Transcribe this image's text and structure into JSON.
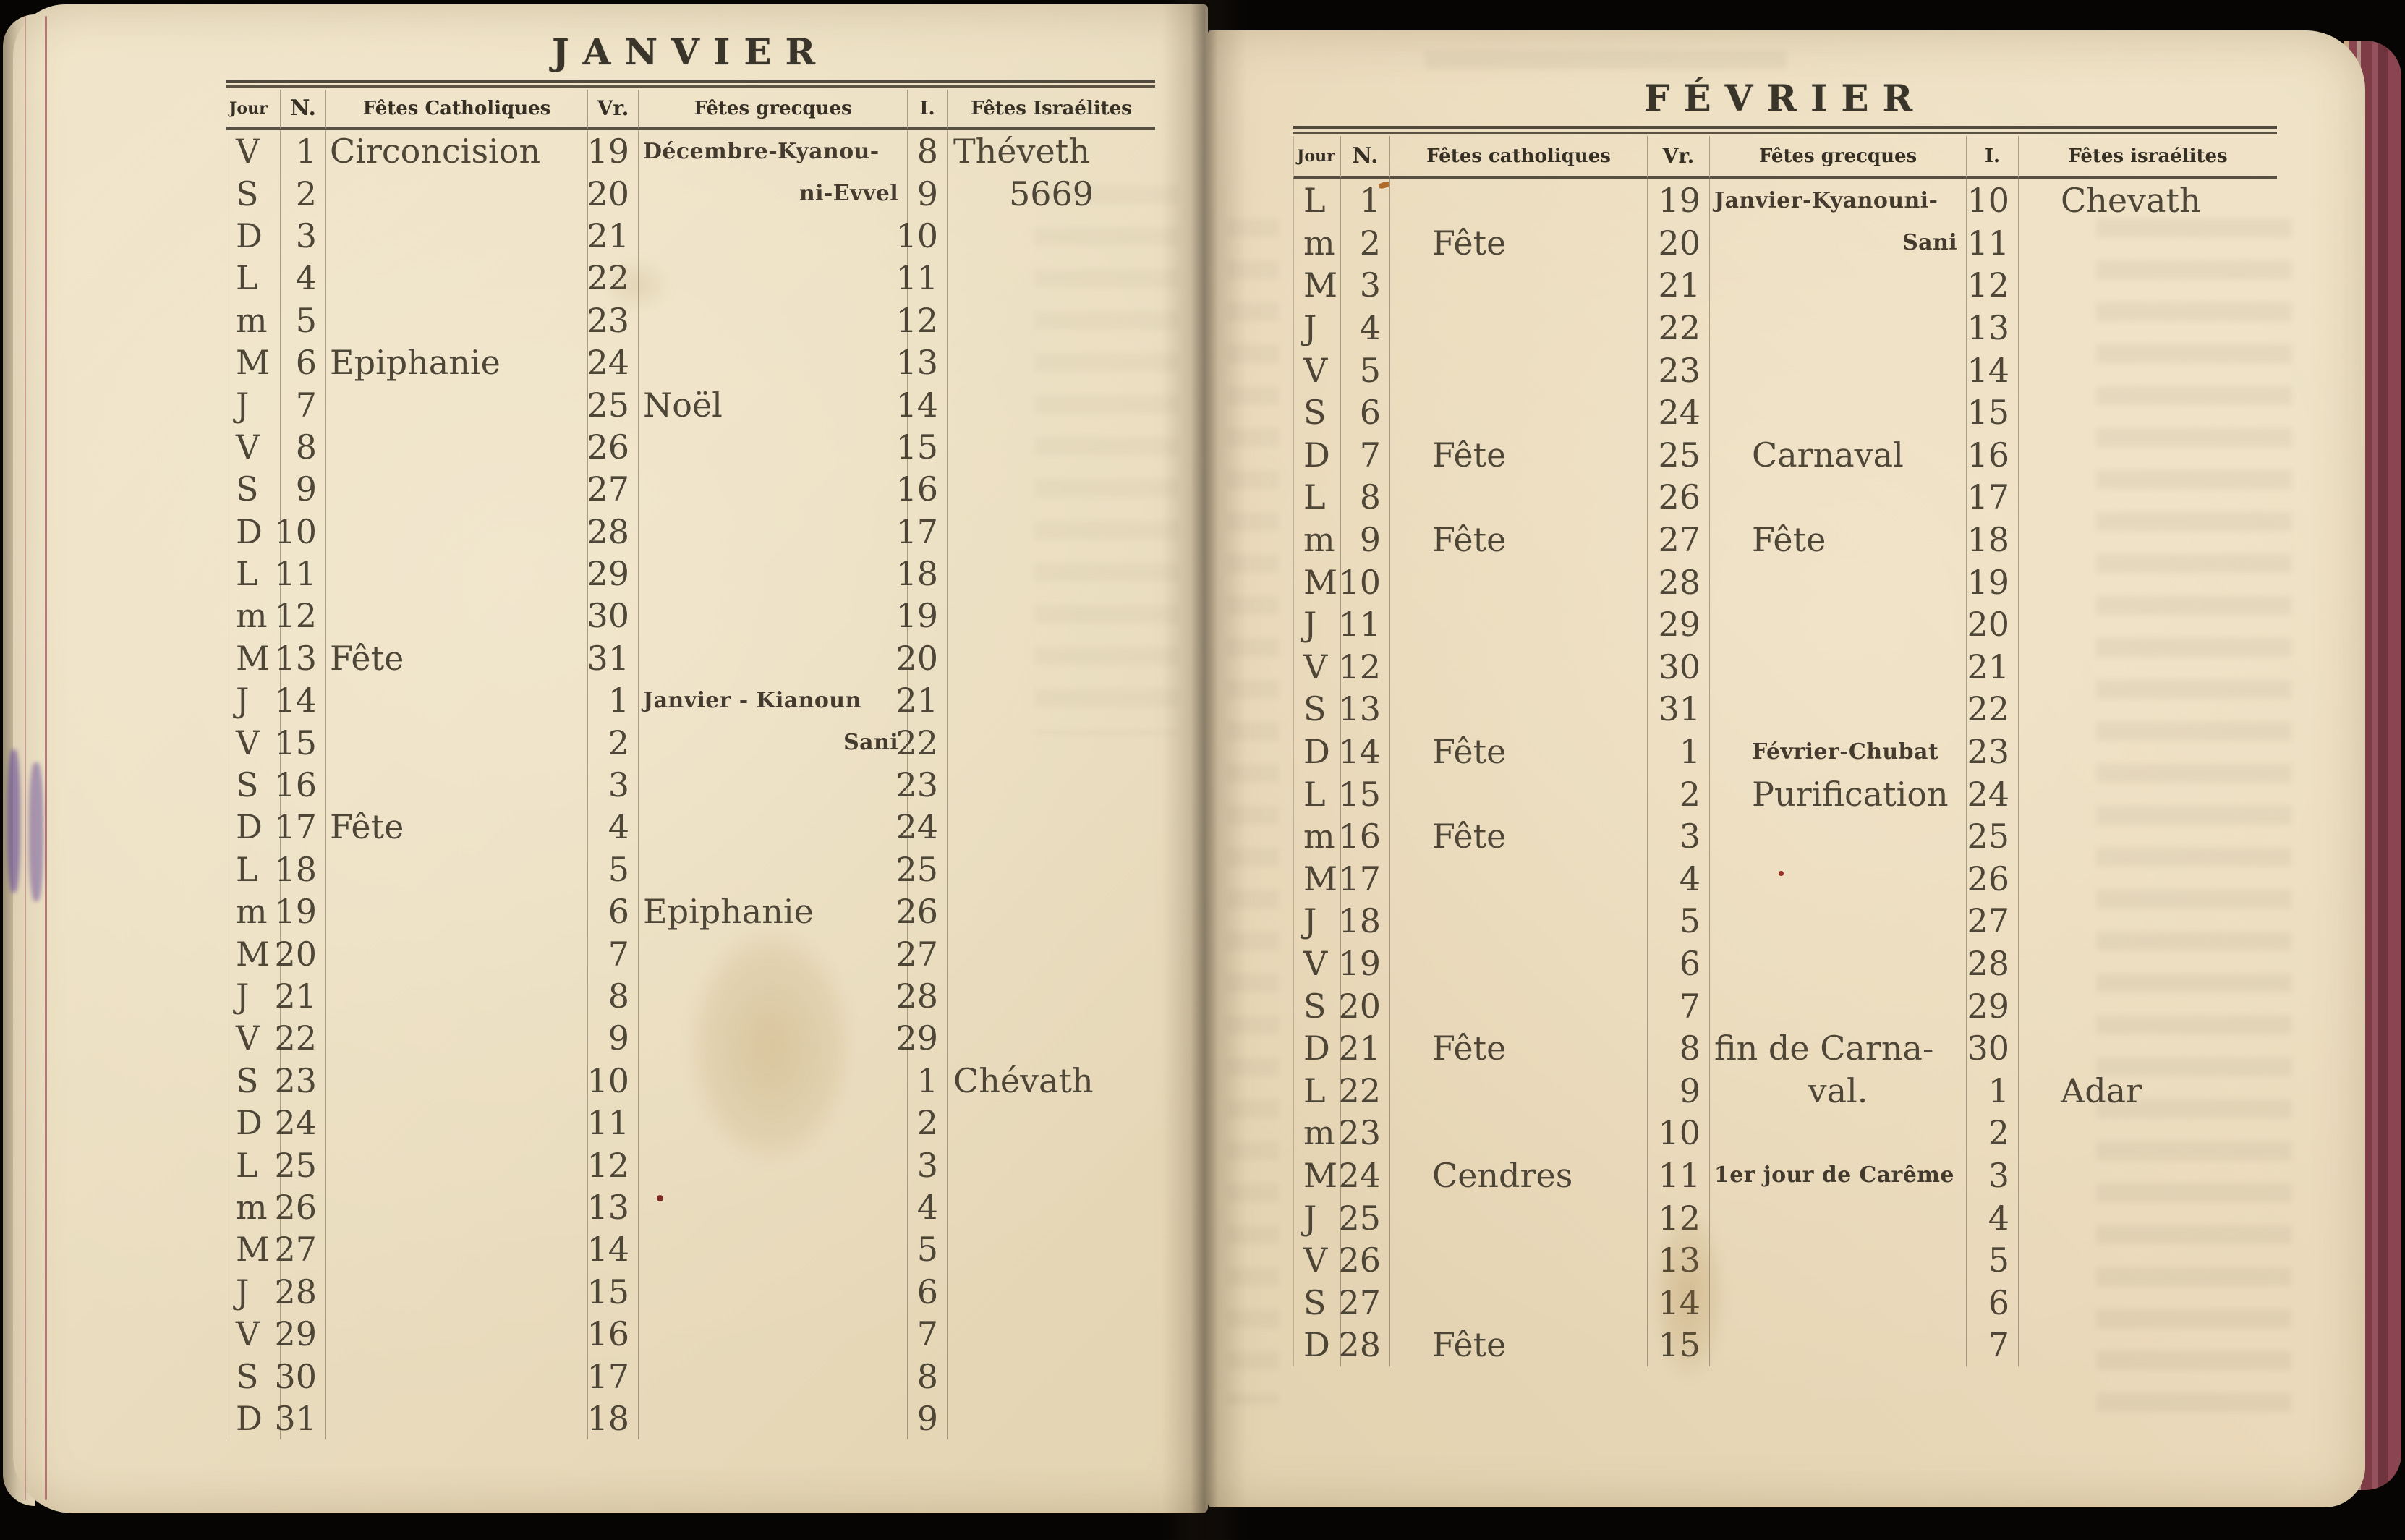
{
  "palette": {
    "background": "#060504",
    "paper": "#ebdec1",
    "ink": "#403a2a",
    "red_margin_line": "#a84c58",
    "fore_edge_red": "#7d3c46"
  },
  "pages": [
    {
      "title": "JANVIER",
      "columns": [
        "Jour",
        "N.",
        "Fêtes  Catholiques",
        "Vr.",
        "Fêtes  grecques",
        "I.",
        "Fêtes Israélites"
      ],
      "column_keys": [
        "jour",
        "n",
        "catholic",
        "vr",
        "greek",
        "i",
        "israelite"
      ],
      "rows": [
        [
          "V",
          "1",
          "Circoncision",
          "19",
          {
            "t": "Décembre-Kyanou-",
            "c": "sm"
          },
          "8",
          "Théveth"
        ],
        [
          "S",
          "2",
          "",
          "20",
          {
            "t": "ni-Evvel",
            "c": "sm r"
          },
          "9",
          {
            "t": "5669",
            "c": "c"
          }
        ],
        [
          "D",
          "3",
          "",
          "21",
          "",
          "10",
          ""
        ],
        [
          "L",
          "4",
          "",
          "22",
          "",
          "11",
          ""
        ],
        [
          "m",
          "5",
          "",
          "23",
          "",
          "12",
          ""
        ],
        [
          "M",
          "6",
          "Epiphanie",
          "24",
          "",
          "13",
          ""
        ],
        [
          "J",
          "7",
          "",
          "25",
          "Noël",
          "14",
          ""
        ],
        [
          "V",
          "8",
          "",
          "26",
          "",
          "15",
          ""
        ],
        [
          "S",
          "9",
          "",
          "27",
          "",
          "16",
          ""
        ],
        [
          "D",
          "10",
          "",
          "28",
          "",
          "17",
          ""
        ],
        [
          "L",
          "11",
          "",
          "29",
          "",
          "18",
          ""
        ],
        [
          "m",
          "12",
          "",
          "30",
          "",
          "19",
          ""
        ],
        [
          "M",
          "13",
          "Fête",
          "31",
          "",
          "20",
          ""
        ],
        [
          "J",
          "14",
          "",
          "1",
          {
            "t": "Janvier - Kianoun",
            "c": "sm"
          },
          "21",
          ""
        ],
        [
          "V",
          "15",
          "",
          "2",
          {
            "t": "Sani",
            "c": "sm r"
          },
          "22",
          ""
        ],
        [
          "S",
          "16",
          "",
          "3",
          "",
          "23",
          ""
        ],
        [
          "D",
          "17",
          "Fête",
          "4",
          "",
          "24",
          ""
        ],
        [
          "L",
          "18",
          "",
          "5",
          "",
          "25",
          ""
        ],
        [
          "m",
          "19",
          "",
          "6",
          "Epiphanie",
          "26",
          ""
        ],
        [
          "M",
          "20",
          "",
          "7",
          "",
          "27",
          ""
        ],
        [
          "J",
          "21",
          "",
          "8",
          "",
          "28",
          ""
        ],
        [
          "V",
          "22",
          "",
          "9",
          "",
          "29",
          ""
        ],
        [
          "S",
          "23",
          "",
          "10",
          "",
          "1",
          "Chévath"
        ],
        [
          "D",
          "24",
          "",
          "11",
          "",
          "2",
          ""
        ],
        [
          "L",
          "25",
          "",
          "12",
          "",
          "3",
          ""
        ],
        [
          "m",
          "26",
          "",
          "13",
          "",
          "4",
          ""
        ],
        [
          "M",
          "27",
          "",
          "14",
          "",
          "5",
          ""
        ],
        [
          "J",
          "28",
          "",
          "15",
          "",
          "6",
          ""
        ],
        [
          "V",
          "29",
          "",
          "16",
          "",
          "7",
          ""
        ],
        [
          "S",
          "30",
          "",
          "17",
          "",
          "8",
          ""
        ],
        [
          "D",
          "31",
          "",
          "18",
          "",
          "9",
          ""
        ]
      ]
    },
    {
      "title": "FÉVRIER",
      "columns": [
        "Jour",
        "N.",
        "Fêtes  catholiques",
        "Vr.",
        "Fêtes  grecques",
        "I.",
        "Fêtes israélites"
      ],
      "column_keys": [
        "jour",
        "n",
        "catholic",
        "vr",
        "greek",
        "i",
        "israelite"
      ],
      "rows": [
        [
          "L",
          "1",
          "",
          "19",
          {
            "t": "Janvier-Kyanouni-",
            "c": "sm"
          },
          "10",
          {
            "t": "Chevath",
            "c": "ind"
          }
        ],
        [
          "m",
          "2",
          {
            "t": "Fête",
            "c": "ind"
          },
          "20",
          {
            "t": "Sani",
            "c": "sm r"
          },
          "11",
          ""
        ],
        [
          "M",
          "3",
          "",
          "21",
          "",
          "12",
          ""
        ],
        [
          "J",
          "4",
          "",
          "22",
          "",
          "13",
          ""
        ],
        [
          "V",
          "5",
          "",
          "23",
          "",
          "14",
          ""
        ],
        [
          "S",
          "6",
          "",
          "24",
          "",
          "15",
          ""
        ],
        [
          "D",
          "7",
          {
            "t": "Fête",
            "c": "ind"
          },
          "25",
          {
            "t": "Carnaval",
            "c": "ind"
          },
          "16",
          ""
        ],
        [
          "L",
          "8",
          "",
          "26",
          "",
          "17",
          ""
        ],
        [
          "m",
          "9",
          {
            "t": "Fête",
            "c": "ind"
          },
          "27",
          {
            "t": "Fête",
            "c": "ind"
          },
          "18",
          ""
        ],
        [
          "M",
          "10",
          "",
          "28",
          "",
          "19",
          ""
        ],
        [
          "J",
          "11",
          "",
          "29",
          "",
          "20",
          ""
        ],
        [
          "V",
          "12",
          "",
          "30",
          "",
          "21",
          ""
        ],
        [
          "S",
          "13",
          "",
          "31",
          "",
          "22",
          ""
        ],
        [
          "D",
          "14",
          {
            "t": "Fête",
            "c": "ind"
          },
          "1",
          {
            "t": "Février-Chubat",
            "c": "sm ind"
          },
          "23",
          ""
        ],
        [
          "L",
          "15",
          "",
          "2",
          {
            "t": "Purification",
            "c": "ind"
          },
          "24",
          ""
        ],
        [
          "m",
          "16",
          {
            "t": "Fête",
            "c": "ind"
          },
          "3",
          "",
          "25",
          ""
        ],
        [
          "M",
          "17",
          "",
          "4",
          "",
          "26",
          ""
        ],
        [
          "J",
          "18",
          "",
          "5",
          "",
          "27",
          ""
        ],
        [
          "V",
          "19",
          "",
          "6",
          "",
          "28",
          ""
        ],
        [
          "S",
          "20",
          "",
          "7",
          "",
          "29",
          ""
        ],
        [
          "D",
          "21",
          {
            "t": "Fête",
            "c": "ind"
          },
          "8",
          "fin de Carna-",
          "30",
          ""
        ],
        [
          "L",
          "22",
          "",
          "9",
          {
            "t": "val.",
            "c": "c"
          },
          "1",
          {
            "t": "Adar",
            "c": "ind"
          }
        ],
        [
          "m",
          "23",
          "",
          "10",
          "",
          "2",
          ""
        ],
        [
          "M",
          "24",
          {
            "t": "Cendres",
            "c": "ind"
          },
          "11",
          {
            "t": "1er jour de Carême",
            "c": "sm"
          },
          "3",
          ""
        ],
        [
          "J",
          "25",
          "",
          "12",
          "",
          "4",
          ""
        ],
        [
          "V",
          "26",
          "",
          "13",
          "",
          "5",
          ""
        ],
        [
          "S",
          "27",
          "",
          "14",
          "",
          "6",
          ""
        ],
        [
          "D",
          "28",
          {
            "t": "Fête",
            "c": "ind"
          },
          "15",
          "",
          "7",
          ""
        ]
      ]
    }
  ]
}
